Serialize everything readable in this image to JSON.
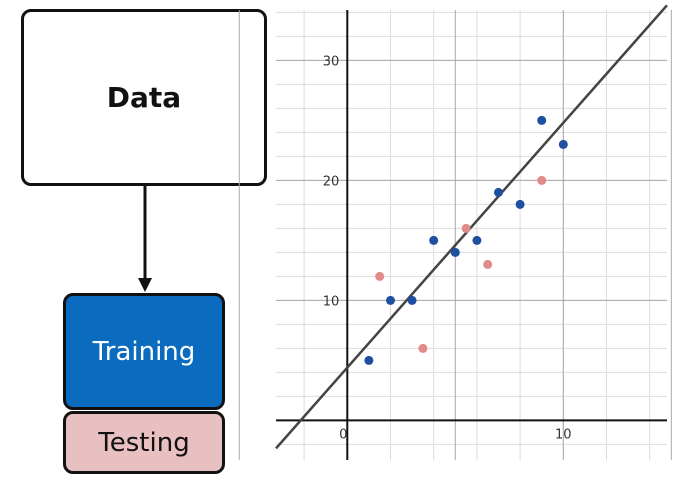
{
  "flow": {
    "data_label": "Data",
    "training_label": "Training",
    "testing_label": "Testing",
    "training_color": "#0a6bbf",
    "testing_color": "#e8c0c2"
  },
  "chart_data": {
    "type": "scatter",
    "title": "",
    "xlabel": "",
    "ylabel": "",
    "xlim": [
      -3.3,
      14.8
    ],
    "ylim": [
      -3.3,
      34.2
    ],
    "x_ticks": [
      {
        "value": 0,
        "label": "0"
      },
      {
        "value": 10,
        "label": "10"
      }
    ],
    "y_ticks": [
      {
        "value": 10,
        "label": "10"
      },
      {
        "value": 20,
        "label": "20"
      },
      {
        "value": 30,
        "label": "30"
      }
    ],
    "grid": true,
    "series": [
      {
        "role": "training",
        "color": "#1e4fa0",
        "points": [
          [
            1,
            5
          ],
          [
            2,
            10
          ],
          [
            3,
            10
          ],
          [
            4,
            15
          ],
          [
            5,
            14
          ],
          [
            6,
            15
          ],
          [
            7,
            19
          ],
          [
            8,
            18
          ],
          [
            9,
            25
          ],
          [
            10,
            23
          ]
        ]
      },
      {
        "role": "testing",
        "color": "#e08a8a",
        "points": [
          [
            1.5,
            12
          ],
          [
            3.5,
            6
          ],
          [
            5.5,
            16
          ],
          [
            6.5,
            13
          ],
          [
            9,
            20
          ]
        ]
      }
    ],
    "fit_line": {
      "slope": 2.04,
      "intercept": 4.4,
      "color": "#444444"
    }
  }
}
